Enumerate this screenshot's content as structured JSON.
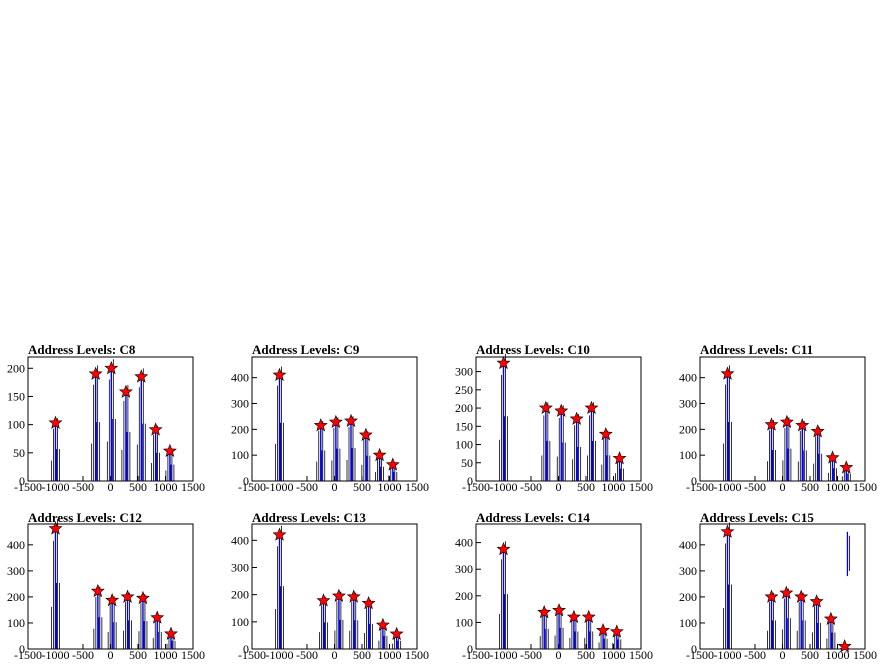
{
  "chart_data": [
    {
      "type": "histogram",
      "title": "Address Levels: C8",
      "xlim": [
        -1500,
        1500
      ],
      "ylim": [
        0,
        220
      ],
      "xticks": [
        "-1500",
        "-1000",
        "-500",
        "0",
        "500",
        "1000",
        "1500"
      ],
      "yticks": [
        "0",
        "50",
        "100",
        "150",
        "200"
      ],
      "peaks": [
        {
          "x": -1000,
          "y": 103
        },
        {
          "x": -270,
          "y": 190
        },
        {
          "x": 15,
          "y": 200
        },
        {
          "x": 280,
          "y": 158
        },
        {
          "x": 560,
          "y": 185
        },
        {
          "x": 820,
          "y": 91
        },
        {
          "x": 1080,
          "y": 53
        }
      ]
    },
    {
      "type": "histogram",
      "title": "Address Levels: C9",
      "xlim": [
        -1500,
        1500
      ],
      "ylim": [
        0,
        480
      ],
      "xticks": [
        "-1500",
        "-1000",
        "-500",
        "0",
        "500",
        "1000",
        "1500"
      ],
      "yticks": [
        "0",
        "100",
        "200",
        "300",
        "400"
      ],
      "peaks": [
        {
          "x": -1000,
          "y": 410
        },
        {
          "x": -250,
          "y": 215
        },
        {
          "x": 25,
          "y": 228
        },
        {
          "x": 300,
          "y": 232
        },
        {
          "x": 570,
          "y": 178
        },
        {
          "x": 820,
          "y": 100
        },
        {
          "x": 1060,
          "y": 63
        }
      ]
    },
    {
      "type": "histogram",
      "title": "Address Levels: C10",
      "xlim": [
        -1500,
        1500
      ],
      "ylim": [
        0,
        340
      ],
      "xticks": [
        "-1500",
        "-1000",
        "-500",
        "0",
        "500",
        "1000",
        "1500"
      ],
      "yticks": [
        "0",
        "50",
        "100",
        "150",
        "200",
        "250",
        "300"
      ],
      "peaks": [
        {
          "x": -1000,
          "y": 323
        },
        {
          "x": -230,
          "y": 200
        },
        {
          "x": 50,
          "y": 192
        },
        {
          "x": 330,
          "y": 170
        },
        {
          "x": 600,
          "y": 200
        },
        {
          "x": 860,
          "y": 128
        },
        {
          "x": 1110,
          "y": 62
        }
      ]
    },
    {
      "type": "histogram",
      "title": "Address Levels: C11",
      "xlim": [
        -1500,
        1500
      ],
      "ylim": [
        0,
        480
      ],
      "xticks": [
        "-1500",
        "-1000",
        "-500",
        "0",
        "500",
        "1000",
        "1500"
      ],
      "yticks": [
        "0",
        "100",
        "200",
        "300",
        "400"
      ],
      "peaks": [
        {
          "x": -1000,
          "y": 415
        },
        {
          "x": -200,
          "y": 218
        },
        {
          "x": 80,
          "y": 228
        },
        {
          "x": 360,
          "y": 215
        },
        {
          "x": 640,
          "y": 192
        },
        {
          "x": 910,
          "y": 90
        },
        {
          "x": 1160,
          "y": 52
        }
      ]
    },
    {
      "type": "histogram",
      "title": "Address Levels: C12",
      "xlim": [
        -1500,
        1500
      ],
      "ylim": [
        0,
        480
      ],
      "xticks": [
        "-1500",
        "-1000",
        "-500",
        "0",
        "500",
        "1000",
        "1500"
      ],
      "yticks": [
        "0",
        "100",
        "200",
        "300",
        "400"
      ],
      "peaks": [
        {
          "x": -1000,
          "y": 462
        },
        {
          "x": -230,
          "y": 222
        },
        {
          "x": 30,
          "y": 187
        },
        {
          "x": 310,
          "y": 200
        },
        {
          "x": 590,
          "y": 195
        },
        {
          "x": 850,
          "y": 120
        },
        {
          "x": 1100,
          "y": 58
        }
      ]
    },
    {
      "type": "histogram",
      "title": "Address Levels: C13",
      "xlim": [
        -1500,
        1500
      ],
      "ylim": [
        0,
        460
      ],
      "xticks": [
        "-1500",
        "-1000",
        "-500",
        "0",
        "500",
        "1000",
        "1500"
      ],
      "yticks": [
        "0",
        "100",
        "200",
        "300",
        "400"
      ],
      "peaks": [
        {
          "x": -1000,
          "y": 420
        },
        {
          "x": -200,
          "y": 178
        },
        {
          "x": 80,
          "y": 195
        },
        {
          "x": 350,
          "y": 192
        },
        {
          "x": 620,
          "y": 168
        },
        {
          "x": 880,
          "y": 88
        },
        {
          "x": 1130,
          "y": 55
        }
      ]
    },
    {
      "type": "histogram",
      "title": "Address Levels: C14",
      "xlim": [
        -1500,
        1500
      ],
      "ylim": [
        0,
        470
      ],
      "xticks": [
        "-1500",
        "-1000",
        "-500",
        "0",
        "500",
        "1000",
        "1500"
      ],
      "yticks": [
        "0",
        "100",
        "200",
        "300",
        "400"
      ],
      "peaks": [
        {
          "x": -1000,
          "y": 375
        },
        {
          "x": -260,
          "y": 138
        },
        {
          "x": 10,
          "y": 145
        },
        {
          "x": 280,
          "y": 120
        },
        {
          "x": 550,
          "y": 120
        },
        {
          "x": 810,
          "y": 70
        },
        {
          "x": 1060,
          "y": 65
        }
      ]
    },
    {
      "type": "histogram",
      "title": "Address Levels: C15",
      "xlim": [
        -1500,
        1500
      ],
      "ylim": [
        0,
        480
      ],
      "xticks": [
        "-1500",
        "-1000",
        "-500",
        "0",
        "500",
        "1000",
        "1500"
      ],
      "yticks": [
        "0",
        "100",
        "200",
        "300",
        "400"
      ],
      "peaks": [
        {
          "x": -1000,
          "y": 450
        },
        {
          "x": -200,
          "y": 200
        },
        {
          "x": 70,
          "y": 215
        },
        {
          "x": 340,
          "y": 200
        },
        {
          "x": 620,
          "y": 182
        },
        {
          "x": 880,
          "y": 115
        },
        {
          "x": 1130,
          "y": 10
        }
      ],
      "extra_segments": [
        {
          "x": 1180,
          "y0": 280,
          "y1": 450
        }
      ]
    }
  ]
}
